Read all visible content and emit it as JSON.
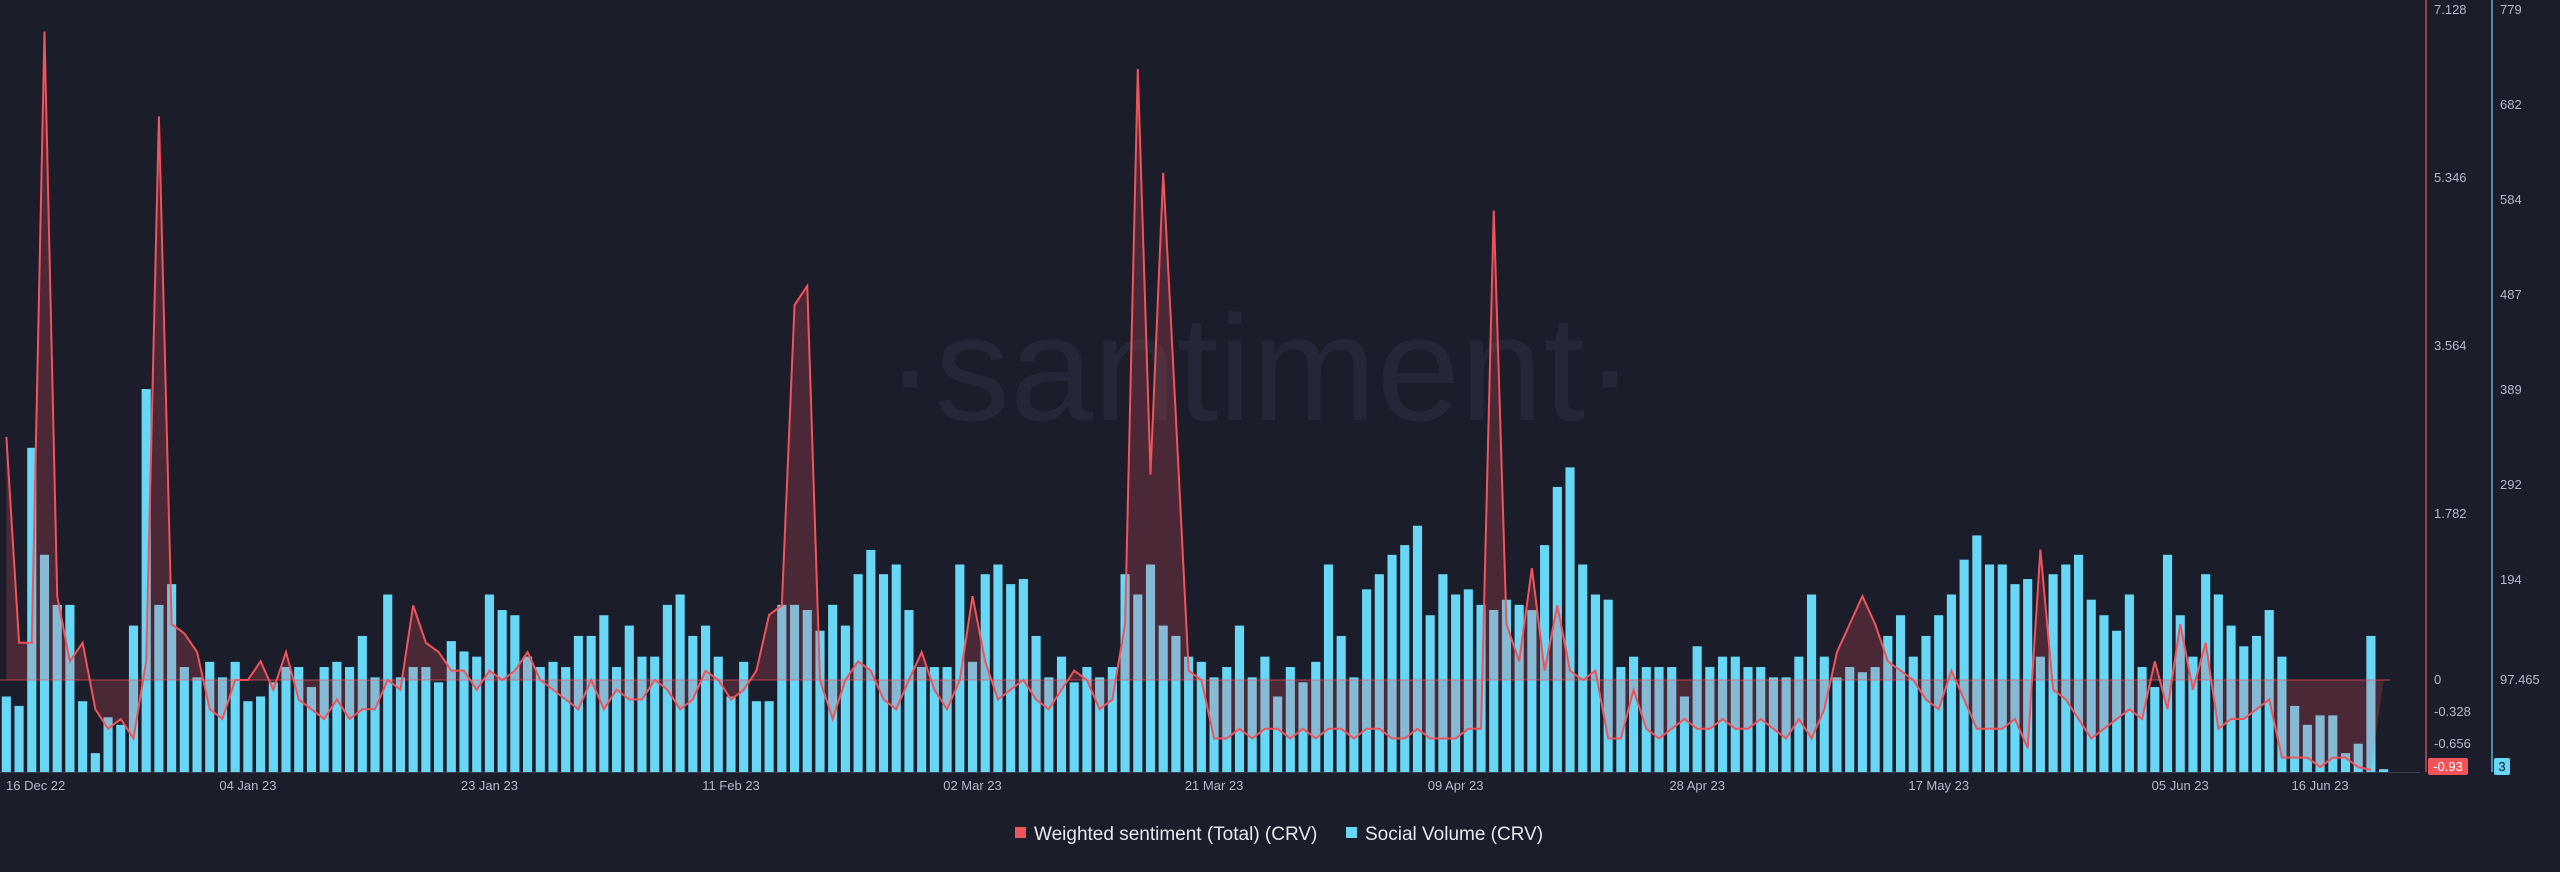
{
  "watermark": "·santiment·",
  "legend": [
    {
      "label": "Weighted sentiment (Total) (CRV)",
      "color": "#f0545a"
    },
    {
      "label": "Social Volume (CRV)",
      "color": "#68d6f5"
    }
  ],
  "chart_data": {
    "type": "bar",
    "x_axis": {
      "labels": [
        "16 Dec 22",
        "04 Jan 23",
        "23 Jan 23",
        "11 Feb 23",
        "02 Mar 23",
        "21 Mar 23",
        "09 Apr 23",
        "28 Apr 23",
        "17 May 23",
        "05 Jun 23",
        "16 Jun 23"
      ],
      "label_indices": [
        0,
        19,
        38,
        57,
        76,
        95,
        114,
        133,
        152,
        171,
        182
      ]
    },
    "y_axis_left_sentiment": {
      "ticks": [
        "7.128",
        "5.346",
        "3.564",
        "1.782",
        "0",
        "-0.328",
        "-0.656"
      ],
      "min": -0.93,
      "max": 7.128,
      "last_value_badge": "-0.93"
    },
    "y_axis_right_volume": {
      "ticks": [
        "779",
        "682",
        "584",
        "487",
        "389",
        "292",
        "194",
        "97.465"
      ],
      "min": 0,
      "max": 779,
      "last_value_badge": "3"
    },
    "series": [
      {
        "name": "Social Volume (CRV)",
        "type": "bar",
        "color": "#68d6f5",
        "values": [
          80,
          70,
          330,
          220,
          170,
          170,
          75,
          20,
          58,
          50,
          150,
          390,
          170,
          190,
          110,
          100,
          115,
          100,
          115,
          75,
          80,
          95,
          110,
          110,
          90,
          110,
          115,
          110,
          140,
          100,
          180,
          100,
          110,
          110,
          95,
          135,
          125,
          120,
          180,
          165,
          160,
          120,
          110,
          115,
          110,
          140,
          140,
          160,
          110,
          150,
          120,
          120,
          170,
          180,
          140,
          150,
          120,
          80,
          115,
          75,
          75,
          170,
          170,
          165,
          145,
          170,
          150,
          200,
          225,
          200,
          210,
          165,
          110,
          110,
          110,
          210,
          115,
          200,
          210,
          190,
          195,
          140,
          100,
          120,
          95,
          110,
          100,
          110,
          200,
          180,
          210,
          150,
          140,
          120,
          115,
          100,
          110,
          150,
          100,
          120,
          80,
          110,
          95,
          115,
          210,
          140,
          100,
          185,
          200,
          220,
          230,
          250,
          160,
          200,
          180,
          185,
          170,
          165,
          175,
          170,
          165,
          230,
          290,
          310,
          210,
          180,
          175,
          110,
          120,
          110,
          110,
          110,
          80,
          130,
          110,
          120,
          120,
          110,
          110,
          100,
          100,
          120,
          180,
          120,
          100,
          110,
          105,
          110,
          140,
          160,
          120,
          140,
          160,
          180,
          215,
          240,
          210,
          210,
          190,
          195,
          120,
          200,
          210,
          220,
          175,
          160,
          145,
          180,
          110,
          90,
          220,
          160,
          120,
          200,
          180,
          150,
          130,
          140,
          165,
          120,
          70,
          50,
          60,
          60,
          20,
          30,
          140,
          3
        ],
        "note": "daily social volume"
      },
      {
        "name": "Weighted sentiment (Total) (CRV)",
        "type": "line",
        "color": "#f0545a",
        "values": [
          2.6,
          0.4,
          0.4,
          6.9,
          0.9,
          0.2,
          0.4,
          -0.3,
          -0.5,
          -0.4,
          -0.6,
          0.2,
          6.0,
          0.6,
          0.5,
          0.3,
          -0.3,
          -0.4,
          0.0,
          0.0,
          0.2,
          -0.1,
          0.3,
          -0.2,
          -0.3,
          -0.4,
          -0.2,
          -0.4,
          -0.3,
          -0.3,
          0.0,
          -0.1,
          0.8,
          0.4,
          0.3,
          0.1,
          0.1,
          -0.1,
          0.1,
          0.0,
          0.1,
          0.3,
          0.0,
          -0.1,
          -0.2,
          -0.3,
          0.0,
          -0.3,
          -0.1,
          -0.2,
          -0.2,
          0.0,
          -0.1,
          -0.3,
          -0.2,
          0.1,
          0.0,
          -0.2,
          -0.1,
          0.1,
          0.7,
          0.8,
          4.0,
          4.2,
          0.0,
          -0.4,
          0.0,
          0.2,
          0.1,
          -0.2,
          -0.3,
          0.0,
          0.3,
          -0.1,
          -0.3,
          0.0,
          0.9,
          0.2,
          -0.2,
          -0.1,
          0.0,
          -0.2,
          -0.3,
          -0.1,
          0.1,
          0.0,
          -0.3,
          -0.2,
          0.6,
          6.5,
          2.2,
          5.4,
          2.8,
          0.1,
          0.0,
          -0.6,
          -0.6,
          -0.5,
          -0.6,
          -0.5,
          -0.5,
          -0.6,
          -0.5,
          -0.6,
          -0.5,
          -0.5,
          -0.6,
          -0.5,
          -0.5,
          -0.6,
          -0.6,
          -0.5,
          -0.6,
          -0.6,
          -0.6,
          -0.5,
          -0.5,
          5.0,
          0.6,
          0.2,
          1.2,
          0.1,
          0.8,
          0.1,
          0.0,
          0.1,
          -0.6,
          -0.6,
          -0.1,
          -0.5,
          -0.6,
          -0.5,
          -0.4,
          -0.5,
          -0.5,
          -0.4,
          -0.5,
          -0.5,
          -0.4,
          -0.5,
          -0.6,
          -0.4,
          -0.6,
          -0.3,
          0.3,
          0.6,
          0.9,
          0.6,
          0.2,
          0.1,
          0.0,
          -0.2,
          -0.3,
          0.1,
          -0.2,
          -0.5,
          -0.5,
          -0.5,
          -0.4,
          -0.7,
          1.4,
          -0.1,
          -0.2,
          -0.4,
          -0.6,
          -0.5,
          -0.4,
          -0.3,
          -0.4,
          0.2,
          -0.3,
          0.6,
          -0.1,
          0.4,
          -0.5,
          -0.4,
          -0.4,
          -0.3,
          -0.2,
          -0.8,
          -0.8,
          -0.8,
          -0.9,
          -0.8,
          -0.8,
          -0.9,
          -0.93
        ]
      }
    ]
  }
}
